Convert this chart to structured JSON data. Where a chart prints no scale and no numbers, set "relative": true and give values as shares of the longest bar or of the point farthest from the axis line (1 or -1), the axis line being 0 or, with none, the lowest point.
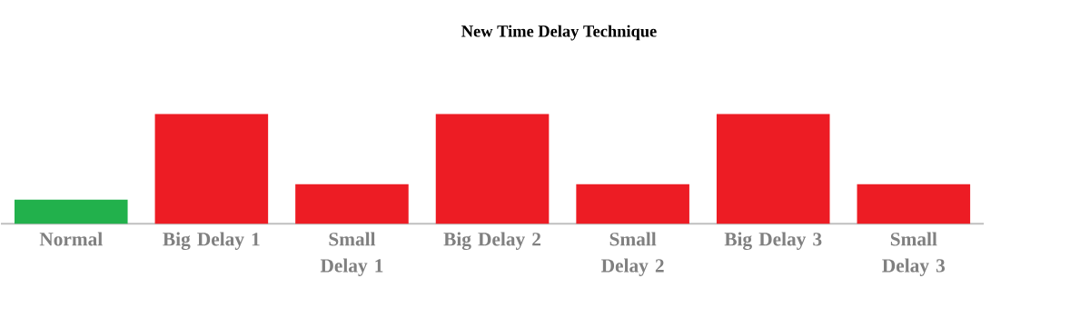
{
  "chart_data": {
    "type": "bar",
    "title": "New Time Delay Technique",
    "relative": true,
    "categories": [
      "Normal",
      "Big Delay 1",
      "Small Delay 1",
      "Big Delay 2",
      "Small Delay 2",
      "Big Delay 3",
      "Small Delay 3"
    ],
    "values": [
      0.22,
      1,
      0.36,
      1,
      0.36,
      1,
      0.36
    ],
    "colors": [
      "#22b14c",
      "#ed1c24",
      "#ed1c24",
      "#ed1c24",
      "#ed1c24",
      "#ed1c24",
      "#ed1c24"
    ]
  }
}
